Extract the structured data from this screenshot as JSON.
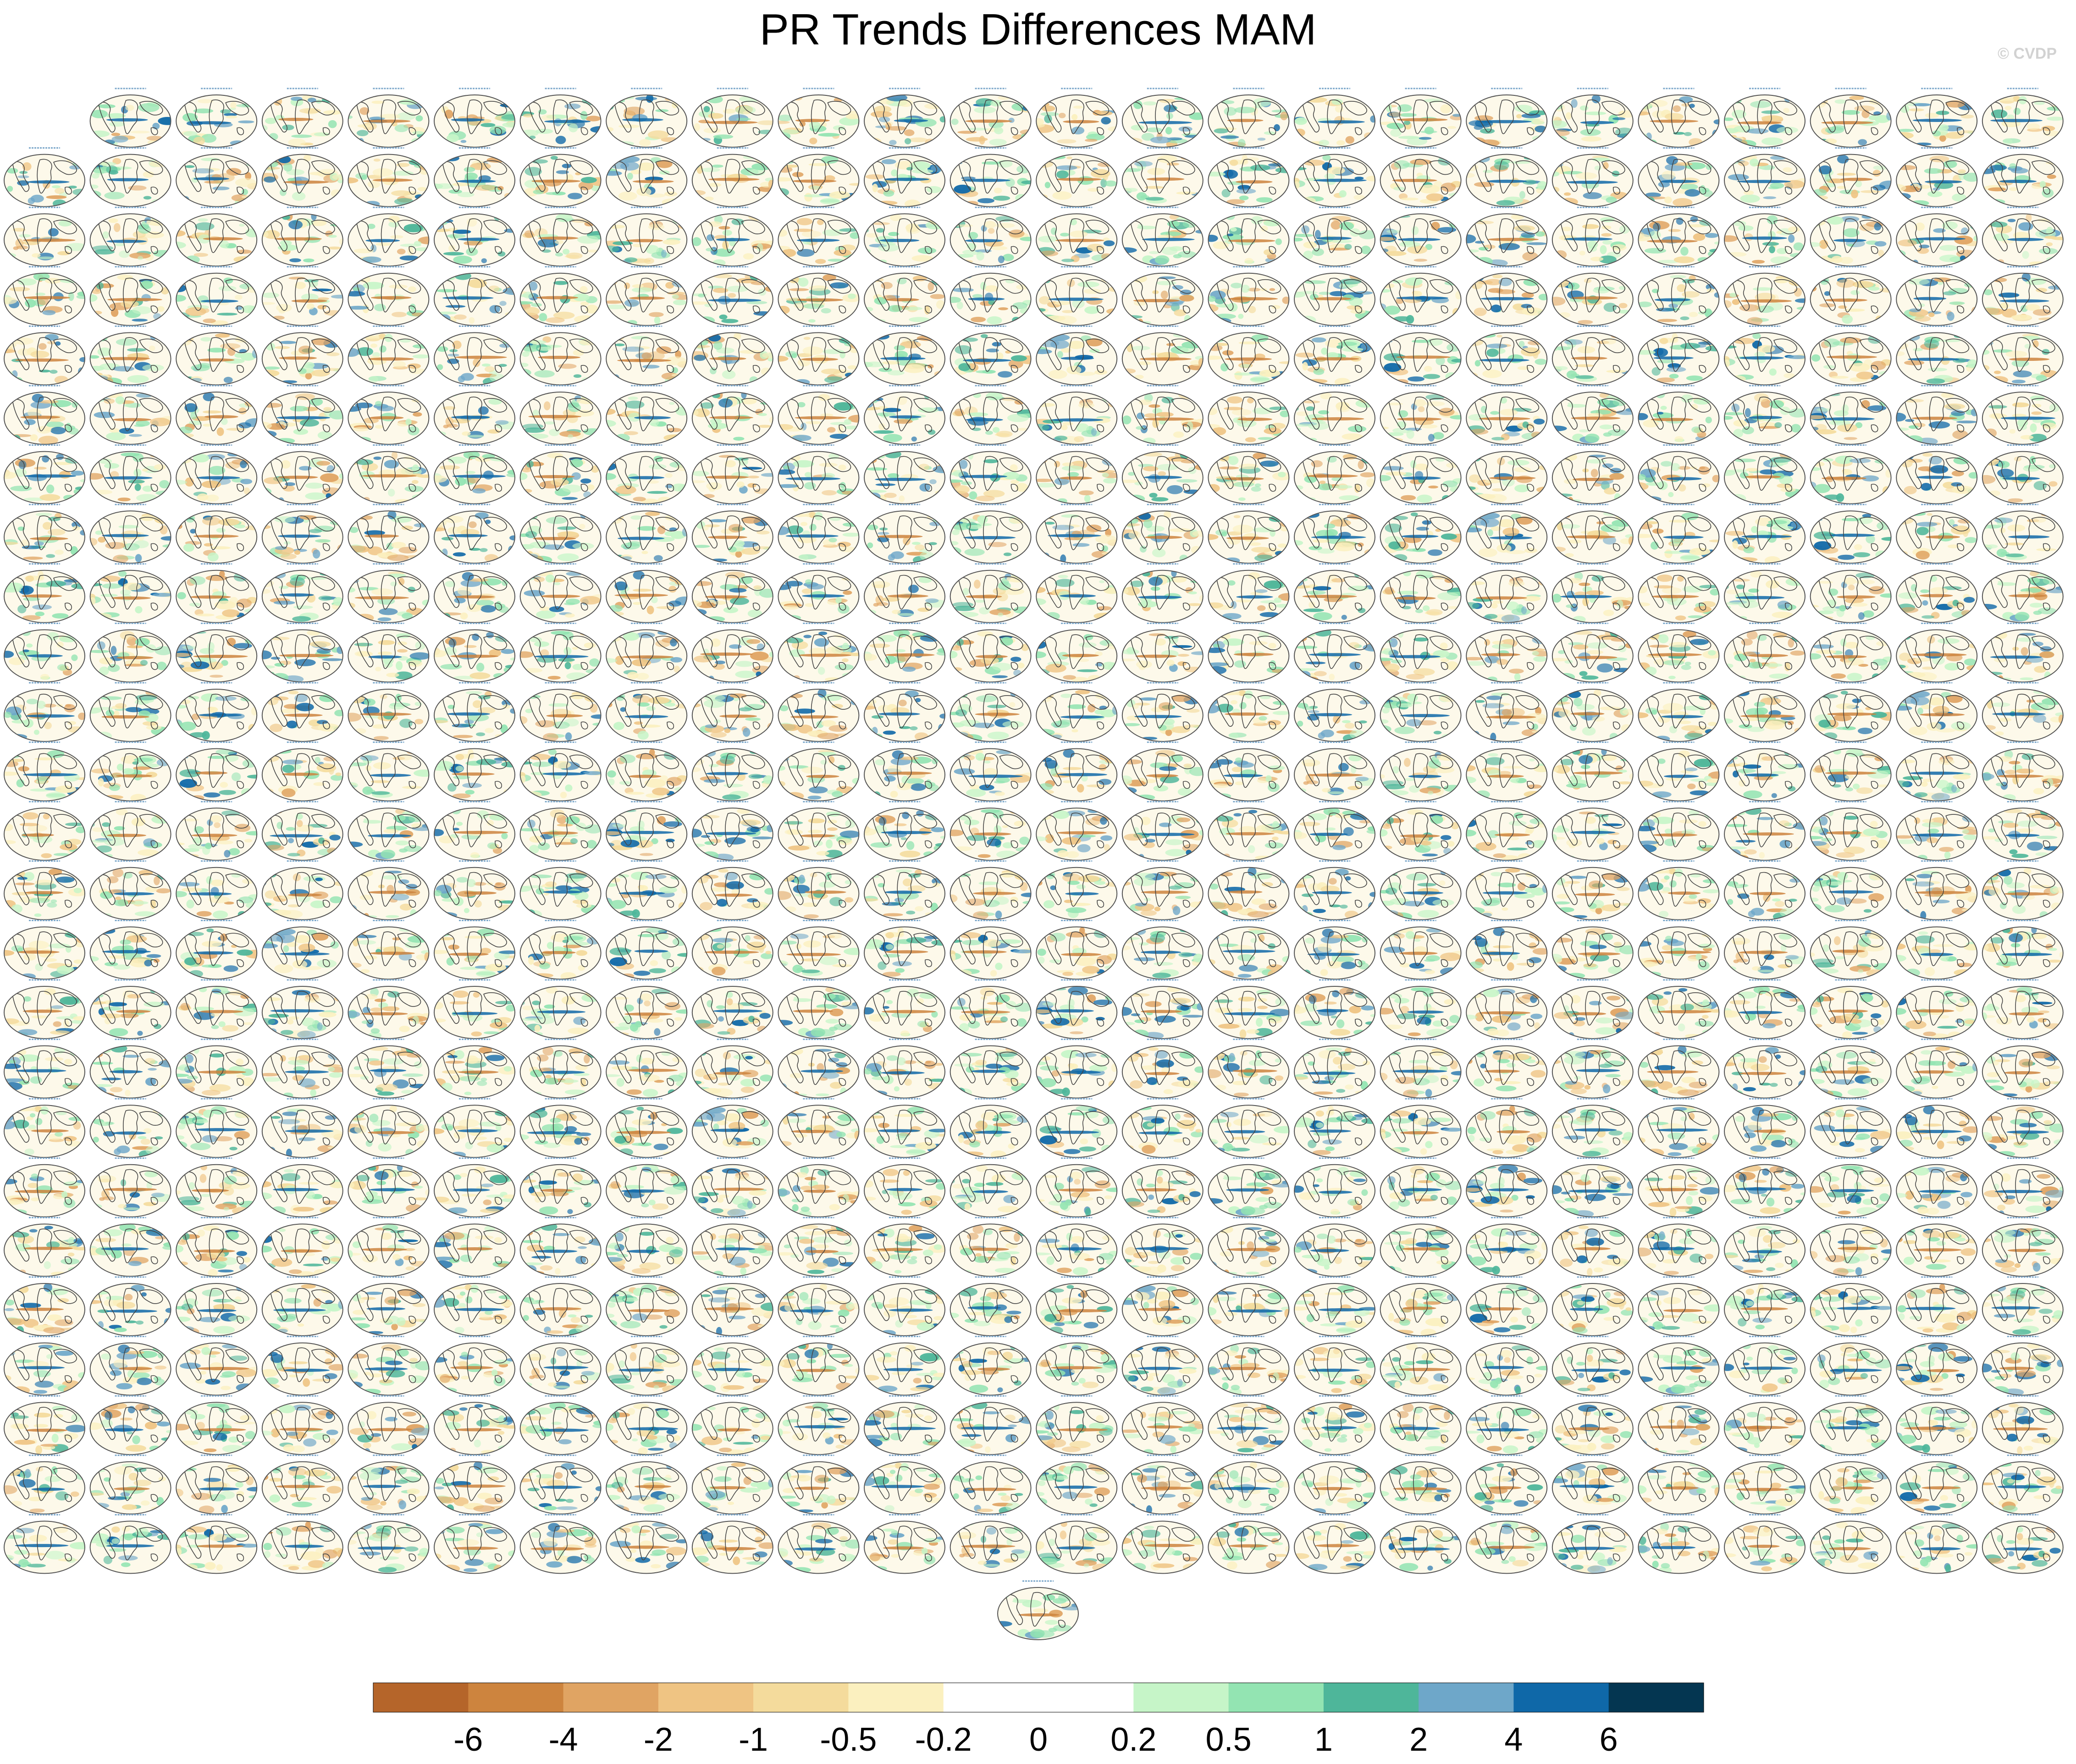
{
  "chart_data": {
    "type": "heatmap",
    "title": "PR Trends Differences MAM",
    "watermark": "© CVDP",
    "panel_grid": {
      "rows": 25,
      "columns": 24,
      "first_row_panels": 23,
      "extra_bottom_panels": 1,
      "panel_kind": "global map of precipitation trend differences"
    },
    "colorbar": {
      "tick_labels": [
        "-6",
        "-4",
        "-2",
        "-1",
        "-0.5",
        "-0.2",
        "0",
        "0.2",
        "0.5",
        "1",
        "2",
        "4",
        "6"
      ],
      "colors": [
        "#b5652a",
        "#cd843e",
        "#e0a463",
        "#efc483",
        "#f4db9c",
        "#fbf0bf",
        "#ffffff",
        "#ffffff",
        "#c6f5c8",
        "#93e4b2",
        "#4eb69a",
        "#6ea7c9",
        "#0f68a8",
        "#043651"
      ]
    }
  }
}
